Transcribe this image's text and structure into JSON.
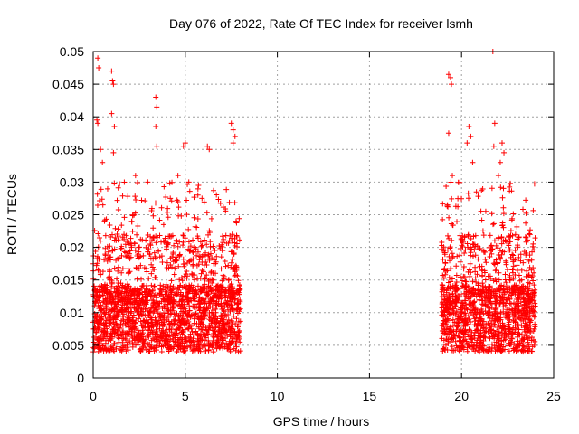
{
  "chart_data": {
    "type": "scatter",
    "title": "Day 076 of 2022, Rate Of TEC Index for receiver lsmh",
    "xlabel": "GPS time / hours",
    "ylabel": "ROTI / TECUs",
    "xlim": [
      0,
      25
    ],
    "ylim": [
      0,
      0.05
    ],
    "x_ticks": [
      0,
      5,
      10,
      15,
      20,
      25
    ],
    "x_tick_labels": [
      "0",
      "5",
      "10",
      "15",
      "20",
      "25"
    ],
    "y_ticks": [
      0,
      0.005,
      0.01,
      0.015,
      0.02,
      0.025,
      0.03,
      0.035,
      0.04,
      0.045,
      0.05
    ],
    "y_tick_labels": [
      "0",
      "0.005",
      "0.01",
      "0.015",
      "0.02",
      "0.025",
      "0.03",
      "0.035",
      "0.04",
      "0.045",
      "0.05"
    ],
    "grid": true,
    "marker": "+",
    "color": "#ff0000",
    "series": [
      {
        "name": "ROTI",
        "segments": [
          {
            "x_range": [
              0.0,
              8.0
            ],
            "y_typical": [
              0.004,
              0.016
            ],
            "y_spread_max": 0.03
          },
          {
            "x_range": [
              18.9,
              24.0
            ],
            "y_typical": [
              0.004,
              0.016
            ],
            "y_spread_max": 0.03
          }
        ],
        "points": [
          [
            0.25,
            0.049
          ],
          [
            0.3,
            0.0475
          ],
          [
            0.25,
            0.039
          ],
          [
            0.2,
            0.0395
          ],
          [
            1.0,
            0.047
          ],
          [
            1.05,
            0.0455
          ],
          [
            1.1,
            0.045
          ],
          [
            1.0,
            0.0405
          ],
          [
            1.15,
            0.0385
          ],
          [
            1.1,
            0.0345
          ],
          [
            3.4,
            0.043
          ],
          [
            3.45,
            0.0415
          ],
          [
            3.4,
            0.0385
          ],
          [
            3.45,
            0.0355
          ],
          [
            4.9,
            0.0355
          ],
          [
            5.0,
            0.036
          ],
          [
            6.2,
            0.0355
          ],
          [
            6.3,
            0.035
          ],
          [
            7.5,
            0.039
          ],
          [
            7.6,
            0.038
          ],
          [
            7.7,
            0.037
          ],
          [
            7.6,
            0.036
          ],
          [
            0.5,
            0.033
          ],
          [
            0.4,
            0.035
          ],
          [
            2.3,
            0.031
          ],
          [
            4.6,
            0.031
          ],
          [
            19.3,
            0.0465
          ],
          [
            19.4,
            0.046
          ],
          [
            19.45,
            0.045
          ],
          [
            19.3,
            0.0375
          ],
          [
            20.4,
            0.0385
          ],
          [
            20.5,
            0.037
          ],
          [
            20.3,
            0.036
          ],
          [
            21.7,
            0.05
          ],
          [
            21.8,
            0.039
          ],
          [
            21.75,
            0.0355
          ],
          [
            22.2,
            0.036
          ],
          [
            22.3,
            0.0345
          ],
          [
            22.1,
            0.033
          ],
          [
            19.5,
            0.031
          ],
          [
            20.6,
            0.033
          ],
          [
            22.0,
            0.031
          ],
          [
            23.1,
            0.0215
          ],
          [
            23.5,
            0.0215
          ]
        ]
      }
    ]
  }
}
